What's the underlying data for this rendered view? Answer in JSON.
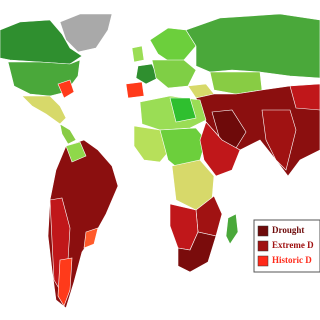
{
  "legend": {
    "items": [
      {
        "label": "Drought",
        "color": "#6e0a0a"
      },
      {
        "label": "Extreme D",
        "color": "#a01212"
      },
      {
        "label": "Historic D",
        "color": "#ff2a1a"
      }
    ]
  }
}
